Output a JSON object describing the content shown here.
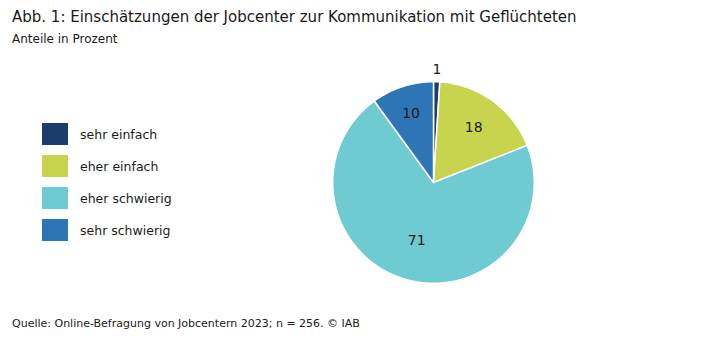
{
  "chart_data": {
    "type": "pie",
    "title": "Abb. 1: Einschätzungen der Jobcenter zur Kommunikation mit Geflüchteten",
    "subtitle": "Anteile in Prozent",
    "caption": "Quelle: Online-Befragung von Jobcentern 2023; n = 256. © IAB",
    "categories": [
      "sehr einfach",
      "eher einfach",
      "eher schwierig",
      "sehr schwierig"
    ],
    "values": [
      1,
      18,
      71,
      10
    ],
    "colors": [
      "#1a3d6b",
      "#c8d44e",
      "#6ecbd1",
      "#2e75b6"
    ],
    "data_labels": true,
    "legend": "left"
  }
}
